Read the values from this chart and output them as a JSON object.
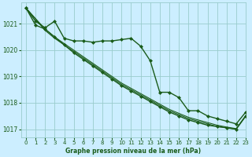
{
  "title": "Graphe pression niveau de la mer (hPa)",
  "background_color": "#cceeff",
  "grid_color": "#99cccc",
  "line_color": "#1a5c1a",
  "xlim": [
    -0.5,
    23
  ],
  "ylim": [
    1016.7,
    1021.8
  ],
  "yticks": [
    1017,
    1018,
    1019,
    1020,
    1021
  ],
  "xtick_labels": [
    "0",
    "1",
    "2",
    "3",
    "4",
    "5",
    "6",
    "7",
    "8",
    "9",
    "10",
    "11",
    "12",
    "13",
    "14",
    "15",
    "16",
    "17",
    "18",
    "19",
    "20",
    "21",
    "22",
    "23"
  ],
  "series": [
    {
      "x": [
        0,
        1,
        2,
        3,
        4,
        5,
        6,
        7,
        8,
        9,
        10,
        11,
        12,
        13,
        14,
        15,
        16,
        17,
        18,
        19,
        20,
        21,
        22,
        23
      ],
      "y": [
        1021.6,
        1021.1,
        1020.85,
        1021.1,
        1020.45,
        1020.35,
        1020.35,
        1020.3,
        1020.35,
        1020.35,
        1020.4,
        1020.45,
        1020.15,
        1019.6,
        1018.4,
        1018.4,
        1018.2,
        1017.7,
        1017.7,
        1017.5,
        1017.4,
        1017.3,
        1017.2,
        1017.65
      ],
      "marker": true,
      "lw": 1.0
    },
    {
      "x": [
        0,
        1,
        2,
        3,
        4,
        5,
        6,
        7,
        8,
        9,
        10,
        11,
        12,
        13,
        14,
        15,
        16,
        17,
        18,
        19,
        20,
        21,
        22,
        23
      ],
      "y": [
        1021.6,
        1020.95,
        1020.8,
        1020.5,
        1020.2,
        1019.9,
        1019.65,
        1019.4,
        1019.15,
        1018.9,
        1018.65,
        1018.45,
        1018.25,
        1018.05,
        1017.85,
        1017.65,
        1017.5,
        1017.35,
        1017.25,
        1017.15,
        1017.1,
        1017.05,
        1017.0,
        1017.5
      ],
      "marker": true,
      "lw": 1.0
    },
    {
      "x": [
        0,
        2,
        3,
        4,
        5,
        6,
        7,
        8,
        9,
        10,
        11,
        12,
        13,
        14,
        15,
        16,
        17,
        18,
        19,
        20,
        21,
        22,
        23
      ],
      "y": [
        1021.6,
        1020.75,
        1020.45,
        1020.2,
        1019.95,
        1019.7,
        1019.45,
        1019.2,
        1018.95,
        1018.7,
        1018.5,
        1018.3,
        1018.1,
        1017.9,
        1017.7,
        1017.55,
        1017.4,
        1017.3,
        1017.2,
        1017.1,
        1017.05,
        1017.0,
        1017.5
      ],
      "marker": false,
      "lw": 0.8
    },
    {
      "x": [
        0,
        2,
        3,
        4,
        5,
        6,
        7,
        8,
        9,
        10,
        11,
        12,
        13,
        14,
        15,
        16,
        17,
        18,
        19,
        20,
        21,
        22,
        23
      ],
      "y": [
        1021.6,
        1020.8,
        1020.5,
        1020.25,
        1020.0,
        1019.75,
        1019.5,
        1019.25,
        1019.0,
        1018.75,
        1018.55,
        1018.35,
        1018.15,
        1017.95,
        1017.75,
        1017.6,
        1017.45,
        1017.35,
        1017.25,
        1017.15,
        1017.08,
        1017.02,
        1017.52
      ],
      "marker": false,
      "lw": 0.8
    }
  ]
}
